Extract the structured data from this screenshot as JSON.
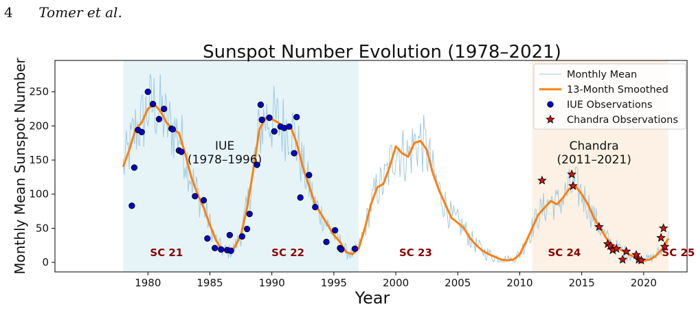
{
  "page_header": {
    "page_number": "4",
    "authors": "Tomer et al."
  },
  "chart_data": {
    "type": "line",
    "title": "Sunspot Number Evolution (1978–2021)",
    "xlabel": "Year",
    "ylabel": "Monthly Mean Sunspot Number",
    "xlim": [
      1972.5,
      2023.5
    ],
    "ylim": [
      -14,
      296
    ],
    "x_ticks": [
      1980,
      1985,
      1990,
      1995,
      2000,
      2005,
      2010,
      2015,
      2020
    ],
    "y_ticks": [
      0,
      50,
      100,
      150,
      200,
      250
    ],
    "grid": false,
    "legend_position": "top-right",
    "shaded_regions": [
      {
        "label": "IUE\n(1978–1996)",
        "start": 1978.0,
        "end": 1997.0,
        "color": "#e6f4f7",
        "label_x": 1986.2,
        "label_y": 165
      },
      {
        "label": "Chandra\n(2011–2021)",
        "start": 2011.0,
        "end": 2022.0,
        "color": "#fcf1e4",
        "label_x": 2016.0,
        "label_y": 165
      }
    ],
    "cycle_labels": [
      {
        "text": "SC 21",
        "x": 1981.5,
        "y": 9
      },
      {
        "text": "SC 22",
        "x": 1991.3,
        "y": 9
      },
      {
        "text": "SC 23",
        "x": 2001.6,
        "y": 9
      },
      {
        "text": "SC 24",
        "x": 2013.6,
        "y": 9
      },
      {
        "text": "SC 25",
        "x": 2022.8,
        "y": 9
      }
    ],
    "series": [
      {
        "name": "Monthly Mean",
        "kind": "monthly",
        "color": "#9ec9e2"
      },
      {
        "name": "13-Month Smoothed",
        "kind": "smoothed",
        "color": "#ff7f0e",
        "x": [
          1978.0,
          1978.5,
          1979.0,
          1979.5,
          1980.0,
          1980.5,
          1981.0,
          1981.5,
          1982.0,
          1982.5,
          1983.0,
          1983.5,
          1984.0,
          1984.5,
          1985.0,
          1985.5,
          1986.0,
          1986.5,
          1987.0,
          1987.5,
          1988.0,
          1988.5,
          1989.0,
          1989.5,
          1990.0,
          1990.5,
          1991.0,
          1991.5,
          1992.0,
          1992.5,
          1993.0,
          1993.5,
          1994.0,
          1994.5,
          1995.0,
          1995.5,
          1996.0,
          1996.5,
          1997.0,
          1997.5,
          1998.0,
          1998.5,
          1999.0,
          1999.5,
          2000.0,
          2000.5,
          2001.0,
          2001.5,
          2002.0,
          2002.5,
          2003.0,
          2003.5,
          2004.0,
          2004.5,
          2005.0,
          2005.5,
          2006.0,
          2006.5,
          2007.0,
          2007.5,
          2008.0,
          2008.5,
          2009.0,
          2009.5,
          2010.0,
          2010.5,
          2011.0,
          2011.5,
          2012.0,
          2012.5,
          2013.0,
          2013.5,
          2014.0,
          2014.5,
          2015.0,
          2015.5,
          2016.0,
          2016.5,
          2017.0,
          2017.5,
          2018.0,
          2018.5,
          2019.0,
          2019.5,
          2020.0,
          2020.5,
          2021.0,
          2021.5,
          2022.0
        ],
        "y": [
          140,
          165,
          195,
          205,
          225,
          232,
          222,
          205,
          195,
          190,
          160,
          125,
          100,
          80,
          55,
          32,
          18,
          15,
          22,
          40,
          80,
          135,
          195,
          212,
          210,
          205,
          198,
          200,
          175,
          140,
          112,
          85,
          70,
          55,
          40,
          30,
          15,
          12,
          20,
          50,
          85,
          110,
          115,
          140,
          170,
          160,
          155,
          175,
          178,
          165,
          130,
          105,
          85,
          65,
          58,
          50,
          35,
          25,
          17,
          12,
          8,
          4,
          3,
          4,
          12,
          30,
          50,
          70,
          80,
          90,
          85,
          95,
          108,
          112,
          100,
          85,
          65,
          50,
          35,
          25,
          20,
          15,
          10,
          6,
          3,
          4,
          10,
          20,
          35
        ]
      },
      {
        "name": "IUE Observations",
        "kind": "scatter",
        "marker": "circle",
        "color": "#0000cc",
        "points": [
          [
            1978.7,
            83
          ],
          [
            1978.9,
            139
          ],
          [
            1979.2,
            194
          ],
          [
            1979.5,
            191
          ],
          [
            1980.0,
            250
          ],
          [
            1980.4,
            232
          ],
          [
            1980.9,
            210
          ],
          [
            1981.3,
            225
          ],
          [
            1981.9,
            196
          ],
          [
            1982.0,
            195
          ],
          [
            1982.5,
            164
          ],
          [
            1982.7,
            162
          ],
          [
            1983.8,
            97
          ],
          [
            1984.5,
            91
          ],
          [
            1984.8,
            35
          ],
          [
            1985.4,
            21
          ],
          [
            1985.9,
            19
          ],
          [
            1986.4,
            18
          ],
          [
            1986.6,
            40
          ],
          [
            1986.7,
            17
          ],
          [
            1987.6,
            38
          ],
          [
            1988.0,
            49
          ],
          [
            1988.2,
            71
          ],
          [
            1988.8,
            143
          ],
          [
            1989.1,
            231
          ],
          [
            1989.2,
            209
          ],
          [
            1989.8,
            212
          ],
          [
            1990.2,
            192
          ],
          [
            1990.7,
            199
          ],
          [
            1991.0,
            197
          ],
          [
            1991.4,
            199
          ],
          [
            1991.8,
            160
          ],
          [
            1992.0,
            213
          ],
          [
            1992.3,
            95
          ],
          [
            1993.0,
            128
          ],
          [
            1993.5,
            81
          ],
          [
            1994.4,
            30
          ],
          [
            1995.1,
            47
          ],
          [
            1995.5,
            21
          ],
          [
            1995.6,
            19
          ],
          [
            1996.7,
            20
          ]
        ]
      },
      {
        "name": "Chandra Observations",
        "kind": "scatter",
        "marker": "star",
        "color": "#dd1111",
        "points": [
          [
            2011.8,
            120
          ],
          [
            2014.2,
            129
          ],
          [
            2014.3,
            112
          ],
          [
            2016.4,
            52
          ],
          [
            2017.1,
            27
          ],
          [
            2017.3,
            24
          ],
          [
            2017.5,
            18
          ],
          [
            2017.8,
            20
          ],
          [
            2018.3,
            4
          ],
          [
            2018.6,
            16
          ],
          [
            2019.4,
            11
          ],
          [
            2019.6,
            4
          ],
          [
            2019.8,
            3
          ],
          [
            2021.4,
            36
          ],
          [
            2021.6,
            50
          ],
          [
            2021.7,
            23
          ]
        ]
      }
    ]
  }
}
